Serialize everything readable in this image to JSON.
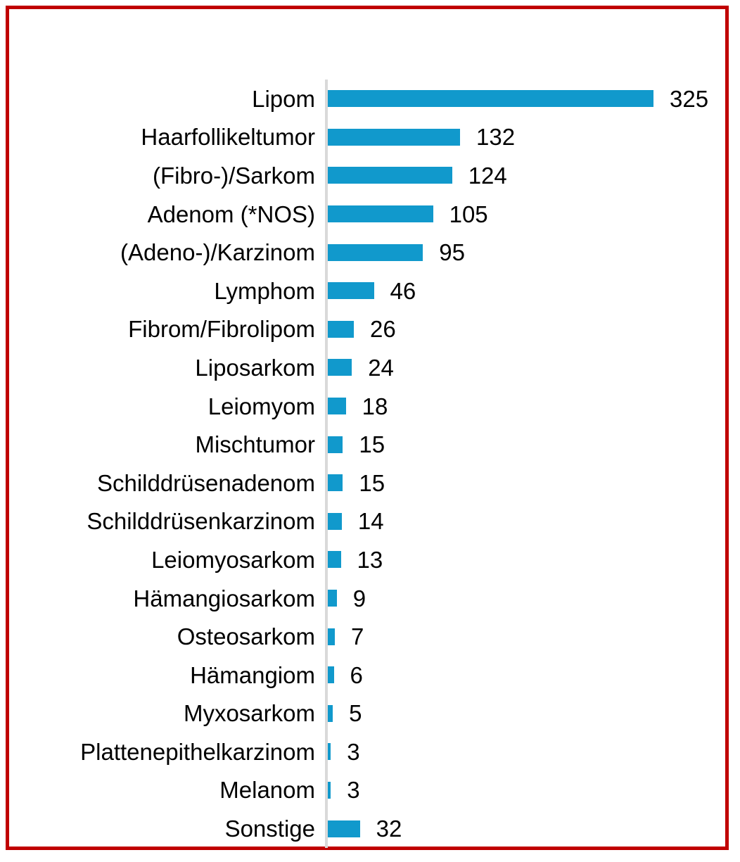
{
  "frame": {
    "border_color": "#C00000"
  },
  "chart_data": {
    "type": "bar",
    "orientation": "horizontal",
    "title": "",
    "xlabel": "",
    "ylabel": "",
    "xlim": [
      0,
      325
    ],
    "grid": false,
    "legend": false,
    "value_labels_shown": true,
    "bar_color": "#1199CC",
    "axis_line_color": "#D9D9D9",
    "text_color": "#000000",
    "categories": [
      "Lipom",
      "Haarfollikeltumor",
      "(Fibro-)/Sarkom",
      "Adenom (*NOS)",
      "(Adeno-)/Karzinom",
      "Lymphom",
      "Fibrom/Fibrolipom",
      "Liposarkom",
      "Leiomyom",
      "Mischtumor",
      "Schilddrüsenadenom",
      "Schilddrüsenkarzinom",
      "Leiomyosarkom",
      "Hämangiosarkom",
      "Osteosarkom",
      "Hämangiom",
      "Myxosarkom",
      "Plattenepithelkarzinom",
      "Melanom",
      "Sonstige"
    ],
    "values": [
      325,
      132,
      124,
      105,
      95,
      46,
      26,
      24,
      18,
      15,
      15,
      14,
      13,
      9,
      7,
      6,
      5,
      3,
      3,
      32
    ]
  }
}
